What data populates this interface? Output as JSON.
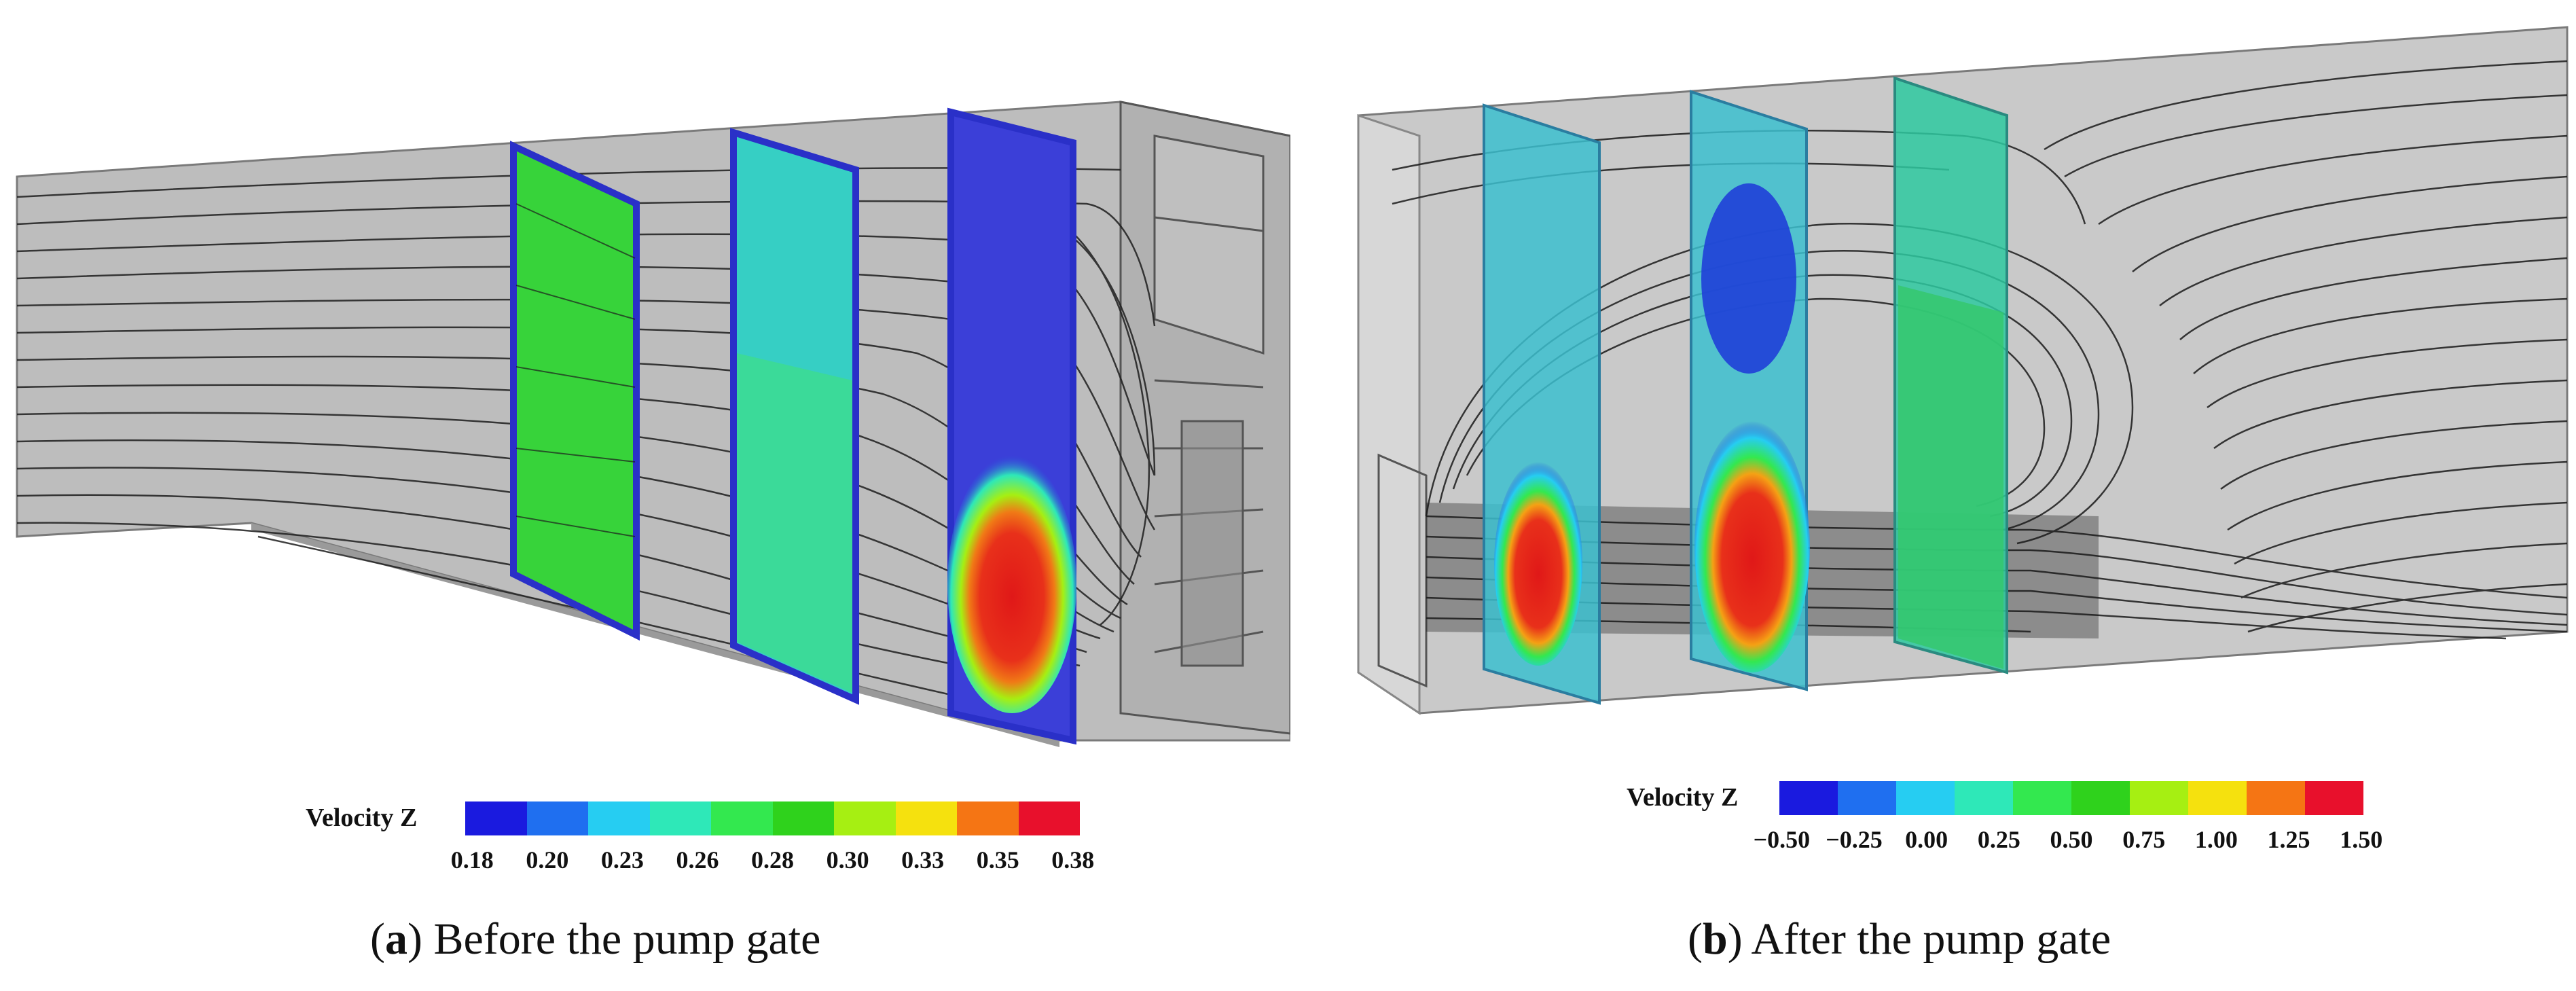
{
  "panels": [
    {
      "id": "a",
      "caption_letter": "a",
      "caption_text": "Before the pump gate",
      "legend_label": "Velocity Z",
      "colorbar_ticks": [
        "0.18",
        "0.20",
        "0.23",
        "0.26",
        "0.28",
        "0.30",
        "0.33",
        "0.35",
        "0.38"
      ],
      "colorbar_colors": [
        "#1a1adf",
        "#1f6ff0",
        "#26cdf2",
        "#2ee8b8",
        "#33e84f",
        "#2fd21c",
        "#a6ef12",
        "#f5e10e",
        "#f57514",
        "#e8102c"
      ]
    },
    {
      "id": "b",
      "caption_letter": "b",
      "caption_text": "After the pump gate",
      "legend_label": "Velocity Z",
      "colorbar_ticks": [
        "−0.50",
        "−0.25",
        "0.00",
        "0.25",
        "0.50",
        "0.75",
        "1.00",
        "1.25",
        "1.50"
      ],
      "colorbar_colors": [
        "#1a1adf",
        "#1f6ff0",
        "#26cdf2",
        "#2ee8b8",
        "#33e84f",
        "#2fd21c",
        "#a6ef12",
        "#f5e10e",
        "#f57514",
        "#e8102c"
      ]
    }
  ]
}
